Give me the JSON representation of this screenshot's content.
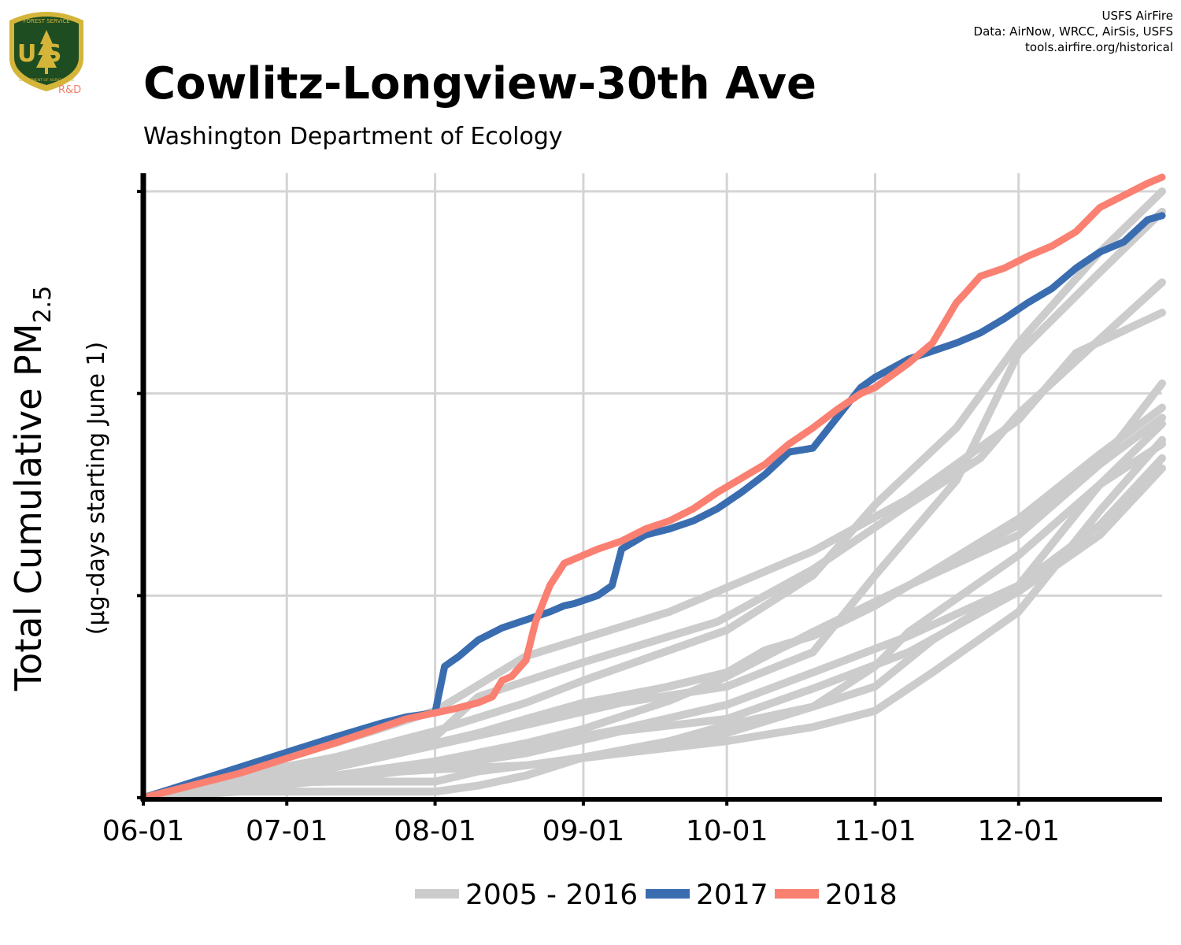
{
  "header": {
    "title": "Cowlitz-Longview-30th Ave",
    "subtitle": "Washington Department of Ecology",
    "credits": [
      "USFS AirFire",
      "Data: AirNow, WRCC, AirSis, USFS",
      "tools.airfire.org/historical"
    ],
    "logo": {
      "text_top": "FOREST SERVICE",
      "text_us": "U S",
      "text_bottom": "DEPARTMENT OF AGRICULTURE",
      "text_rd": "R&D",
      "colors": {
        "shield": "#1f4d22",
        "gold": "#d4b53a",
        "rd": "#f08070"
      }
    }
  },
  "chart_data": {
    "type": "line",
    "ylabel_main": "Total Cumulative PM",
    "ylabel_sub": "2.5",
    "ylabel_note": "(µg-days starting June 1)",
    "x_ticks": [
      "06-01",
      "07-01",
      "08-01",
      "09-01",
      "10-01",
      "11-01",
      "12-01"
    ],
    "x_tick_days": [
      0,
      30,
      61,
      92,
      122,
      153,
      183
    ],
    "xlim": [
      0,
      213
    ],
    "ylim": [
      0,
      3
    ],
    "y_ticks": [
      0,
      1,
      2,
      3
    ],
    "y_tick_labels_shown": false,
    "grid": true,
    "colors": {
      "history": "#cccccc",
      "y2017": "#3a6db0",
      "y2018": "#fa8072",
      "grid": "#d4d4d4",
      "axis": "#000000"
    },
    "legend": {
      "position": "bottom",
      "items": [
        {
          "label": "2005 - 2016",
          "color": "#cccccc"
        },
        {
          "label": "2017",
          "color": "#3a6db0"
        },
        {
          "label": "2018",
          "color": "#fa8072"
        }
      ]
    },
    "series": [
      {
        "group": "2005 - 2016",
        "x": [
          0,
          20,
          40,
          52,
          61,
          66,
          80,
          110,
          140,
          160,
          183,
          195,
          213
        ],
        "y": [
          0,
          0.14,
          0.27,
          0.36,
          0.43,
          0.5,
          0.7,
          0.92,
          1.22,
          1.48,
          1.87,
          2.2,
          2.4
        ]
      },
      {
        "group": "2005 - 2016",
        "x": [
          0,
          20,
          40,
          61,
          70,
          92,
          120,
          140,
          160,
          175,
          183,
          200,
          213
        ],
        "y": [
          0,
          0.11,
          0.2,
          0.3,
          0.5,
          0.67,
          0.87,
          1.13,
          1.45,
          1.68,
          1.9,
          2.27,
          2.55
        ]
      },
      {
        "group": "2005 - 2016",
        "x": [
          0,
          20,
          40,
          61,
          80,
          92,
          122,
          140,
          153,
          170,
          183,
          200,
          213
        ],
        "y": [
          0,
          0.1,
          0.2,
          0.33,
          0.47,
          0.58,
          0.83,
          1.1,
          1.45,
          1.83,
          2.25,
          2.7,
          3.0
        ]
      },
      {
        "group": "2005 - 2016",
        "x": [
          0,
          20,
          40,
          61,
          80,
          100,
          122,
          140,
          153,
          170,
          183,
          200,
          213
        ],
        "y": [
          0,
          0.08,
          0.15,
          0.26,
          0.36,
          0.47,
          0.55,
          0.72,
          1.1,
          1.57,
          2.2,
          2.6,
          2.9
        ]
      },
      {
        "group": "2005 - 2016",
        "x": [
          0,
          20,
          40,
          61,
          80,
          92,
          122,
          140,
          160,
          183,
          200,
          213
        ],
        "y": [
          0,
          0.07,
          0.15,
          0.26,
          0.37,
          0.45,
          0.62,
          0.81,
          1.05,
          1.3,
          1.65,
          2.05
        ]
      },
      {
        "group": "2005 - 2016",
        "x": [
          0,
          20,
          40,
          61,
          80,
          92,
          110,
          122,
          140,
          160,
          183,
          200,
          213
        ],
        "y": [
          0,
          0.06,
          0.11,
          0.18,
          0.27,
          0.34,
          0.48,
          0.6,
          0.82,
          1.05,
          1.35,
          1.65,
          1.88
        ]
      },
      {
        "group": "2005 - 2016",
        "x": [
          0,
          20,
          40,
          61,
          80,
          100,
          122,
          140,
          160,
          183,
          200,
          213
        ],
        "y": [
          0,
          0.05,
          0.1,
          0.17,
          0.25,
          0.34,
          0.46,
          0.62,
          0.8,
          1.05,
          1.35,
          1.68
        ]
      },
      {
        "group": "2005 - 2016",
        "x": [
          0,
          20,
          40,
          61,
          80,
          100,
          122,
          140,
          160,
          183,
          200,
          213
        ],
        "y": [
          0,
          0.04,
          0.09,
          0.15,
          0.22,
          0.33,
          0.39,
          0.54,
          0.72,
          1.02,
          1.3,
          1.63
        ]
      },
      {
        "group": "2005 - 2016",
        "x": [
          0,
          20,
          40,
          61,
          80,
          100,
          122,
          140,
          153,
          165,
          183,
          200,
          213
        ],
        "y": [
          0,
          0.07,
          0.11,
          0.14,
          0.16,
          0.22,
          0.28,
          0.35,
          0.43,
          0.62,
          0.92,
          1.42,
          1.77
        ]
      },
      {
        "group": "2005 - 2016",
        "x": [
          0,
          20,
          40,
          61,
          70,
          80,
          92,
          110,
          122,
          140,
          153,
          160,
          183,
          200,
          213
        ],
        "y": [
          0,
          0.07,
          0.08,
          0.08,
          0.13,
          0.16,
          0.2,
          0.27,
          0.32,
          0.45,
          0.65,
          0.82,
          1.2,
          1.55,
          1.85
        ]
      },
      {
        "group": "2005 - 2016",
        "x": [
          0,
          20,
          40,
          61,
          70,
          80,
          92,
          110,
          122,
          140,
          153,
          165,
          183,
          200,
          213
        ],
        "y": [
          0,
          0.03,
          0.03,
          0.03,
          0.06,
          0.11,
          0.2,
          0.28,
          0.36,
          0.45,
          0.55,
          0.78,
          1.05,
          1.55,
          1.75
        ]
      },
      {
        "group": "2005 - 2016",
        "x": [
          0,
          20,
          40,
          61,
          70,
          80,
          92,
          110,
          122,
          130,
          140,
          153,
          165,
          183,
          200,
          213
        ],
        "y": [
          0,
          0.08,
          0.16,
          0.27,
          0.32,
          0.39,
          0.47,
          0.55,
          0.62,
          0.73,
          0.8,
          0.95,
          1.12,
          1.38,
          1.7,
          1.93
        ]
      },
      {
        "name": "2017",
        "group": "2017",
        "x": [
          0,
          20,
          40,
          50,
          55,
          61,
          63,
          66,
          70,
          75,
          80,
          85,
          88,
          90,
          95,
          98,
          100,
          105,
          110,
          115,
          120,
          125,
          130,
          135,
          140,
          145,
          150,
          153,
          160,
          165,
          170,
          175,
          180,
          185,
          190,
          195,
          200,
          205,
          210,
          213
        ],
        "y": [
          0,
          0.15,
          0.3,
          0.37,
          0.4,
          0.42,
          0.65,
          0.7,
          0.78,
          0.84,
          0.88,
          0.92,
          0.95,
          0.96,
          1.0,
          1.05,
          1.23,
          1.3,
          1.33,
          1.37,
          1.43,
          1.51,
          1.6,
          1.71,
          1.73,
          1.88,
          2.03,
          2.08,
          2.17,
          2.21,
          2.25,
          2.3,
          2.37,
          2.45,
          2.52,
          2.62,
          2.7,
          2.75,
          2.86,
          2.88
        ]
      },
      {
        "name": "2018",
        "group": "2018",
        "x": [
          0,
          20,
          40,
          50,
          55,
          61,
          65,
          70,
          73,
          75,
          77,
          80,
          82,
          85,
          88,
          92,
          95,
          100,
          105,
          110,
          115,
          120,
          125,
          130,
          135,
          140,
          145,
          150,
          153,
          160,
          165,
          170,
          172,
          175,
          180,
          185,
          190,
          195,
          200,
          205,
          210,
          213
        ],
        "y": [
          0,
          0.12,
          0.27,
          0.35,
          0.39,
          0.42,
          0.44,
          0.47,
          0.5,
          0.58,
          0.6,
          0.68,
          0.87,
          1.05,
          1.16,
          1.2,
          1.23,
          1.27,
          1.33,
          1.37,
          1.43,
          1.51,
          1.58,
          1.65,
          1.75,
          1.83,
          1.92,
          2.0,
          2.03,
          2.15,
          2.25,
          2.45,
          2.5,
          2.58,
          2.62,
          2.68,
          2.73,
          2.8,
          2.92,
          2.98,
          3.04,
          3.07
        ]
      }
    ]
  }
}
